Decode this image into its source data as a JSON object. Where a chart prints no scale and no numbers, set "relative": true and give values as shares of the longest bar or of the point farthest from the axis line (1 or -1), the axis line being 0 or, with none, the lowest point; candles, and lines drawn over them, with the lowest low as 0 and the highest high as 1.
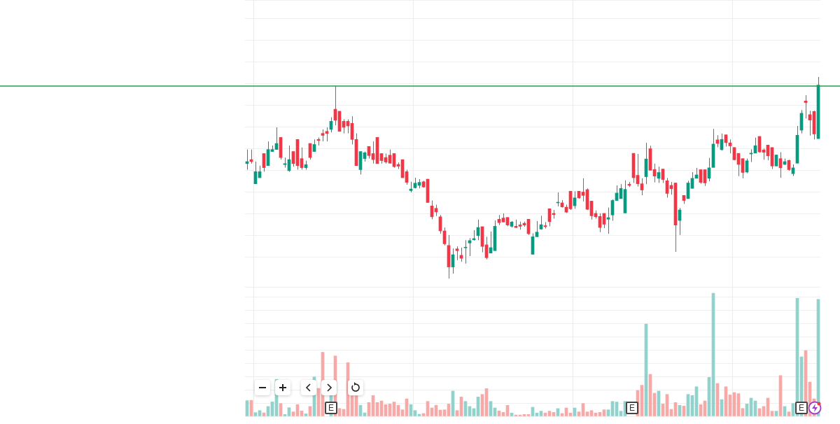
{
  "chart_data": [
    {
      "type": "candlestick",
      "relative": true,
      "grid": true,
      "categories": [
        null,
        null,
        null,
        null,
        null,
        null,
        null,
        null,
        null,
        null,
        null,
        null,
        null,
        null,
        null,
        null,
        null,
        null,
        null,
        null,
        null,
        null,
        null,
        null,
        null,
        null,
        null,
        null,
        null,
        null,
        null,
        null,
        null,
        null,
        null,
        null,
        null,
        null,
        null,
        null,
        null,
        null,
        null,
        null,
        null,
        null,
        null,
        null,
        null,
        null,
        null,
        null,
        null,
        null,
        null,
        null,
        null,
        null,
        null,
        null,
        null,
        null,
        null,
        null,
        null,
        null,
        null,
        null,
        null,
        null,
        null,
        null,
        null,
        null,
        null,
        null,
        null,
        null,
        null,
        null,
        null,
        null,
        null,
        null,
        null,
        null,
        null,
        null,
        null,
        null,
        null,
        null,
        null,
        null,
        null,
        null,
        null,
        null,
        null,
        null,
        null,
        null,
        null,
        null,
        null,
        null,
        null,
        null,
        null,
        null,
        null,
        null,
        null,
        null,
        null,
        null,
        null,
        null,
        null,
        null,
        null,
        null,
        null,
        null,
        null,
        null,
        null,
        null,
        null,
        null,
        null,
        null,
        null,
        null,
        null,
        null,
        null
      ],
      "colors": [
        "#089981",
        "#f23645",
        "#089981",
        "#089981",
        "#f23645",
        "#089981",
        "#089981",
        "#089981",
        "#f23645",
        "#089981",
        "#089981",
        "#f23645",
        "#f23645",
        "#f23645",
        "#089981",
        "#f23645",
        "#089981",
        "#f23645",
        "#f23645",
        "#f23645",
        "#089981",
        "#f23645",
        "#f23645",
        "#f23645",
        "#f23645",
        "#f23645",
        "#f23645",
        "#089981",
        "#089981",
        "#f23645",
        "#f23645",
        "#f23645",
        "#f23645",
        "#f23645",
        "#f23645",
        "#f23645",
        "#f23645",
        "#f23645",
        "#f23645",
        "#089981",
        "#089981",
        "#089981",
        "#f23645",
        "#f23645",
        "#f23645",
        "#f23645",
        "#f23645",
        "#f23645",
        "#f23645",
        "#089981",
        "#f23645",
        "#f23645",
        "#089981",
        "#089981",
        "#089981",
        "#089981",
        "#f23645",
        "#f23645",
        "#089981",
        "#089981",
        "#f23645",
        "#f23645",
        "#f23645",
        "#089981",
        "#f23645",
        "#f23645",
        "#f23645",
        "#f23645",
        "#089981",
        "#089981",
        "#089981",
        "#f23645",
        "#f23645",
        "#f23645",
        "#089981",
        "#f23645",
        "#f23645",
        "#f23645",
        "#089981",
        "#f23645",
        "#f23645",
        "#f23645",
        "#f23645",
        "#f23645",
        "#f23645",
        "#f23645",
        "#089981",
        "#089981",
        "#089981",
        "#089981",
        "#089981",
        "#f23645",
        "#f23645",
        "#f23645",
        "#f23645",
        "#089981",
        "#f23645",
        "#f23645",
        "#089981",
        "#f23645",
        "#f23645",
        "#f23645",
        "#f23645",
        "#089981",
        "#f23645",
        "#089981",
        "#089981",
        "#089981",
        "#f23645",
        "#f23645",
        "#089981",
        "#089981",
        "#f23645",
        "#089981",
        "#f23645",
        "#f23645",
        "#f23645",
        "#f23645",
        "#f23645",
        "#089981",
        "#089981",
        "#089981",
        "#f23645",
        "#f23645",
        "#f23645",
        "#f23645",
        "#089981",
        "#f23645",
        "#089981",
        "#f23645",
        "#089981",
        "#089981",
        "#089981",
        "#f23645",
        "#f23645",
        "#f23645",
        "#089981"
      ],
      "ohlc": [
        [
          0.57,
          0.64,
          0.54,
          0.58
        ],
        [
          0.59,
          0.64,
          0.57,
          0.58
        ],
        [
          0.47,
          0.58,
          0.47,
          0.53
        ],
        [
          0.5,
          0.56,
          0.5,
          0.53
        ],
        [
          0.62,
          0.62,
          0.53,
          0.55
        ],
        [
          0.56,
          0.68,
          0.56,
          0.64
        ],
        [
          0.63,
          0.66,
          0.63,
          0.64
        ],
        [
          0.64,
          0.75,
          0.64,
          0.67
        ],
        [
          0.7,
          0.7,
          0.59,
          0.6
        ],
        [
          0.565,
          0.6,
          0.55,
          0.57
        ],
        [
          0.535,
          0.66,
          0.53,
          0.59
        ],
        [
          0.63,
          0.63,
          0.555,
          0.57
        ],
        [
          0.69,
          0.69,
          0.54,
          0.56
        ],
        [
          0.595,
          0.65,
          0.54,
          0.55
        ],
        [
          0.55,
          0.585,
          0.54,
          0.565
        ],
        [
          0.67,
          0.67,
          0.59,
          0.6
        ],
        [
          0.63,
          0.69,
          0.63,
          0.665
        ],
        [
          0.69,
          0.7,
          0.66,
          0.685
        ],
        [
          0.72,
          0.74,
          0.68,
          0.71
        ],
        [
          0.73,
          0.75,
          0.68,
          0.72
        ],
        [
          0.74,
          0.8,
          0.725,
          0.78
        ],
        [
          0.84,
          0.956,
          0.76,
          0.785
        ],
        [
          0.83,
          0.83,
          0.73,
          0.73
        ],
        [
          0.78,
          0.79,
          0.72,
          0.75
        ],
        [
          0.78,
          0.79,
          0.72,
          0.757
        ],
        [
          0.77,
          0.805,
          0.665,
          0.69
        ],
        [
          0.69,
          0.72,
          0.56,
          0.56
        ],
        [
          0.54,
          0.63,
          0.516,
          0.63
        ],
        [
          0.595,
          0.63,
          0.58,
          0.624
        ],
        [
          0.655,
          0.655,
          0.595,
          0.61
        ],
        [
          0.62,
          0.68,
          0.57,
          0.59
        ],
        [
          0.7,
          0.7,
          0.57,
          0.57
        ],
        [
          0.62,
          0.62,
          0.57,
          0.585
        ],
        [
          0.6,
          0.62,
          0.57,
          0.578
        ],
        [
          0.612,
          0.64,
          0.57,
          0.572
        ],
        [
          0.62,
          0.62,
          0.55,
          0.555
        ],
        [
          0.566,
          0.576,
          0.543,
          0.557
        ],
        [
          0.59,
          0.59,
          0.5,
          0.5
        ],
        [
          0.53,
          0.54,
          0.465,
          0.477
        ],
        [
          0.436,
          0.48,
          0.427,
          0.444
        ],
        [
          0.45,
          0.5,
          0.447,
          0.473
        ],
        [
          0.462,
          0.493,
          0.447,
          0.477
        ],
        [
          0.48,
          0.485,
          0.45,
          0.454
        ],
        [
          0.493,
          0.493,
          0.377,
          0.377
        ],
        [
          0.36,
          0.387,
          0.294,
          0.306
        ],
        [
          0.348,
          0.366,
          0.31,
          0.33
        ],
        [
          0.306,
          0.315,
          0.222,
          0.236
        ],
        [
          0.236,
          0.253,
          0.164,
          0.172
        ],
        [
          0.164,
          0.216,
          0,
          0.057
        ],
        [
          0.057,
          0.149,
          0.024,
          0.118
        ],
        [
          0.147,
          0.159,
          0.091,
          0.138
        ],
        [
          0.115,
          0.153,
          0.083,
          0.1
        ],
        [
          0.152,
          0.19,
          0.074,
          0.155
        ],
        [
          0.176,
          0.2,
          0.111,
          0.188
        ],
        [
          0.192,
          0.24,
          0.188,
          0.198
        ],
        [
          0.213,
          0.292,
          0.19,
          0.253
        ],
        [
          0.257,
          0.257,
          0.13,
          0.159
        ],
        [
          0.167,
          0.207,
          0.095,
          0.103
        ],
        [
          0.126,
          0.233,
          0.126,
          0.153
        ],
        [
          0.138,
          0.288,
          0.138,
          0.259
        ],
        [
          0.294,
          0.315,
          0.265,
          0.277
        ],
        [
          0.3,
          0.323,
          0.28,
          0.28
        ],
        [
          0.303,
          0.303,
          0.259,
          0.265
        ],
        [
          0.259,
          0.285,
          0.253,
          0.28
        ],
        [
          0.259,
          0.292,
          0.25,
          0.253
        ],
        [
          0.266,
          0.282,
          0.242,
          0.259
        ],
        [
          0.274,
          0.282,
          0.257,
          0.265
        ],
        [
          0.294,
          0.294,
          0.216,
          0.222
        ],
        [
          0.12,
          0.224,
          0.12,
          0.207
        ],
        [
          0.207,
          0.285,
          0.207,
          0.23
        ],
        [
          0.245,
          0.311,
          0.242,
          0.267
        ],
        [
          0.262,
          0.28,
          0.248,
          0.257
        ],
        [
          0.346,
          0.346,
          0.259,
          0.282
        ],
        [
          0.323,
          0.34,
          0.297,
          0.317
        ],
        [
          0.375,
          0.427,
          0.358,
          0.378
        ],
        [
          0.375,
          0.389,
          0.352,
          0.355
        ],
        [
          0.354,
          0.366,
          0.325,
          0.329
        ],
        [
          0.433,
          0.433,
          0.34,
          0.346
        ],
        [
          0.361,
          0.433,
          0.346,
          0.4
        ],
        [
          0.433,
          0.433,
          0.396,
          0.4
        ],
        [
          0.429,
          0.497,
          0.383,
          0.412
        ],
        [
          0.441,
          0.447,
          0.34,
          0.343
        ],
        [
          0.384,
          0.384,
          0.292,
          0.311
        ],
        [
          0.323,
          0.338,
          0.297,
          0.306
        ],
        [
          0.308,
          0.323,
          0.23,
          0.253
        ],
        [
          0.323,
          0.323,
          0.25,
          0.269
        ],
        [
          0.294,
          0.352,
          0.222,
          0.302
        ],
        [
          0.315,
          0.392,
          0.286,
          0.387
        ],
        [
          0.387,
          0.462,
          0.387,
          0.424
        ],
        [
          0.396,
          0.468,
          0.396,
          0.447
        ],
        [
          0.325,
          0.487,
          0.325,
          0.442
        ],
        [
          0.468,
          0.479,
          0.454,
          0.462
        ],
        [
          0.621,
          0.621,
          0.474,
          0.5
        ],
        [
          0.512,
          0.618,
          0.456,
          0.47
        ],
        [
          0.47,
          0.497,
          0.413,
          0.439
        ],
        [
          0.505,
          0.673,
          0.468,
          0.593
        ],
        [
          0.644,
          0.659,
          0.537,
          0.537
        ],
        [
          0.541,
          0.57,
          0.477,
          0.508
        ],
        [
          0.497,
          0.555,
          0.474,
          0.526
        ],
        [
          0.543,
          0.543,
          0.474,
          0.491
        ],
        [
          0.485,
          0.499,
          0.401,
          0.422
        ],
        [
          0.462,
          0.479,
          0.416,
          0.445
        ],
        [
          0.474,
          0.474,
          0.132,
          0.265
        ],
        [
          0.288,
          0.35,
          0.216,
          0.34
        ],
        [
          0.412,
          0.412,
          0.37,
          0.387
        ],
        [
          0.396,
          0.485,
          0.396,
          0.474
        ],
        [
          0.447,
          0.528,
          0.447,
          0.497
        ],
        [
          0.497,
          0.549,
          0.497,
          0.514
        ],
        [
          0.54,
          0.54,
          0.47,
          0.477
        ],
        [
          0.54,
          0.54,
          0.459,
          0.474
        ],
        [
          0.497,
          0.598,
          0.482,
          0.549
        ],
        [
          0.551,
          0.742,
          0.551,
          0.667
        ],
        [
          0.688,
          0.711,
          0.651,
          0.67
        ],
        [
          0.639,
          0.719,
          0.636,
          0.69
        ],
        [
          0.713,
          0.713,
          0.655,
          0.674
        ],
        [
          0.673,
          0.69,
          0.621,
          0.658
        ],
        [
          0.65,
          0.65,
          0.586,
          0.589
        ],
        [
          0.621,
          0.621,
          0.508,
          0.566
        ],
        [
          0.595,
          0.595,
          0.497,
          0.526
        ],
        [
          0.528,
          0.595,
          0.523,
          0.584
        ],
        [
          0.618,
          0.641,
          0.578,
          0.622
        ],
        [
          0.622,
          0.699,
          0.622,
          0.659
        ],
        [
          0.705,
          0.705,
          0.624,
          0.628
        ],
        [
          0.638,
          0.645,
          0.589,
          0.626
        ],
        [
          0.662,
          0.662,
          0.587,
          0.609
        ],
        [
          0.65,
          0.65,
          0.543,
          0.558
        ],
        [
          0.558,
          0.613,
          0.558,
          0.613
        ],
        [
          0.595,
          0.627,
          0.5,
          0.549
        ],
        [
          0.566,
          0.595,
          0.563,
          0.58
        ],
        [
          0.586,
          0.589,
          0.535,
          0.54
        ],
        [
          0.52,
          0.566,
          0.508,
          0.549
        ],
        [
          0.572,
          0.757,
          0.572,
          0.711
        ],
        [
          0.736,
          0.836,
          0.72,
          0.82
        ],
        [
          0.881,
          0.91,
          0.794,
          0.873
        ],
        [
          0.813,
          0.832,
          0.709,
          0.786
        ],
        [
          0.829,
          0.832,
          0.69,
          0.717
        ],
        [
          0.694,
          1,
          0.694,
          0.96
        ]
      ],
      "ref_lines": [
        {
          "axis": "y",
          "value": 0.955,
          "color": "#22a04b"
        }
      ]
    },
    {
      "type": "bar",
      "relative": true,
      "grid": true,
      "categories": [
        null,
        null,
        null,
        null,
        null,
        null,
        null,
        null,
        null,
        null,
        null,
        null,
        null,
        null,
        null,
        null,
        null,
        null,
        null,
        null,
        null,
        null,
        null,
        null,
        null,
        null,
        null,
        null,
        null,
        null,
        null,
        null,
        null,
        null,
        null,
        null,
        null,
        null,
        null,
        null,
        null,
        null,
        null,
        null,
        null,
        null,
        null,
        null,
        null,
        null,
        null,
        null,
        null,
        null,
        null,
        null,
        null,
        null,
        null,
        null,
        null,
        null,
        null,
        null,
        null,
        null,
        null,
        null,
        null,
        null,
        null,
        null,
        null,
        null,
        null,
        null,
        null,
        null,
        null,
        null,
        null,
        null,
        null,
        null,
        null,
        null,
        null,
        null,
        null,
        null,
        null,
        null,
        null,
        null,
        null,
        null,
        null,
        null,
        null,
        null,
        null,
        null,
        null,
        null,
        null,
        null,
        null,
        null,
        null,
        null,
        null,
        null,
        null,
        null,
        null,
        null,
        null,
        null,
        null,
        null,
        null,
        null,
        null,
        null,
        null,
        null,
        null,
        null,
        null,
        null,
        null,
        null,
        null,
        null,
        null,
        null,
        null
      ],
      "colors": [
        "#92d2cc",
        "#f7a9a7",
        "#92d2cc",
        "#92d2cc",
        "#f7a9a7",
        "#92d2cc",
        "#92d2cc",
        "#92d2cc",
        "#f7a9a7",
        "#92d2cc",
        "#92d2cc",
        "#f7a9a7",
        "#f7a9a7",
        "#f7a9a7",
        "#92d2cc",
        "#f7a9a7",
        "#92d2cc",
        "#f7a9a7",
        "#f7a9a7",
        "#f7a9a7",
        "#92d2cc",
        "#f7a9a7",
        "#f7a9a7",
        "#f7a9a7",
        "#f7a9a7",
        "#f7a9a7",
        "#f7a9a7",
        "#92d2cc",
        "#92d2cc",
        "#f7a9a7",
        "#f7a9a7",
        "#f7a9a7",
        "#f7a9a7",
        "#f7a9a7",
        "#f7a9a7",
        "#f7a9a7",
        "#f7a9a7",
        "#f7a9a7",
        "#f7a9a7",
        "#92d2cc",
        "#92d2cc",
        "#92d2cc",
        "#f7a9a7",
        "#f7a9a7",
        "#f7a9a7",
        "#f7a9a7",
        "#f7a9a7",
        "#f7a9a7",
        "#f7a9a7",
        "#92d2cc",
        "#f7a9a7",
        "#f7a9a7",
        "#92d2cc",
        "#92d2cc",
        "#92d2cc",
        "#92d2cc",
        "#f7a9a7",
        "#f7a9a7",
        "#92d2cc",
        "#92d2cc",
        "#f7a9a7",
        "#f7a9a7",
        "#f7a9a7",
        "#92d2cc",
        "#f7a9a7",
        "#f7a9a7",
        "#f7a9a7",
        "#f7a9a7",
        "#92d2cc",
        "#92d2cc",
        "#92d2cc",
        "#f7a9a7",
        "#f7a9a7",
        "#f7a9a7",
        "#92d2cc",
        "#f7a9a7",
        "#f7a9a7",
        "#f7a9a7",
        "#92d2cc",
        "#f7a9a7",
        "#f7a9a7",
        "#f7a9a7",
        "#f7a9a7",
        "#f7a9a7",
        "#f7a9a7",
        "#f7a9a7",
        "#92d2cc",
        "#92d2cc",
        "#92d2cc",
        "#92d2cc",
        "#92d2cc",
        "#f7a9a7",
        "#f7a9a7",
        "#f7a9a7",
        "#f7a9a7",
        "#92d2cc",
        "#f7a9a7",
        "#f7a9a7",
        "#92d2cc",
        "#f7a9a7",
        "#f7a9a7",
        "#f7a9a7",
        "#f7a9a7",
        "#92d2cc",
        "#f7a9a7",
        "#92d2cc",
        "#92d2cc",
        "#92d2cc",
        "#f7a9a7",
        "#f7a9a7",
        "#92d2cc",
        "#92d2cc",
        "#f7a9a7",
        "#92d2cc",
        "#f7a9a7",
        "#f7a9a7",
        "#f7a9a7",
        "#f7a9a7",
        "#f7a9a7",
        "#92d2cc",
        "#92d2cc",
        "#92d2cc",
        "#f7a9a7",
        "#f7a9a7",
        "#f7a9a7",
        "#f7a9a7",
        "#92d2cc",
        "#f7a9a7",
        "#92d2cc",
        "#f7a9a7",
        "#92d2cc",
        "#92d2cc",
        "#92d2cc",
        "#f7a9a7",
        "#f7a9a7",
        "#f7a9a7",
        "#92d2cc"
      ],
      "values": [
        0.127,
        0.13,
        0.03,
        0.047,
        0.028,
        0.08,
        0.117,
        0.3,
        0.104,
        0.015,
        0.07,
        0.036,
        0.095,
        0.044,
        0.02,
        0.08,
        0.32,
        0.227,
        0.52,
        null,
        0.17,
        0.49,
        0.064,
        0.057,
        0.436,
        0.167,
        0.167,
        0.09,
        0.028,
        0.112,
        0.169,
        0.112,
        0.125,
        0.095,
        0.1,
        0.116,
        0.09,
        0.053,
        0.142,
        0.095,
        0.047,
        0.017,
        0.023,
        0.121,
        0.068,
        0.09,
        0.051,
        0.053,
        0.1,
        0.205,
        0.047,
        0.157,
        0.121,
        0.08,
        0.063,
        0.157,
        0.178,
        0.225,
        0.121,
        0.068,
        0.044,
        0.032,
        0.089,
        0.027,
        0.011,
        0.011,
        0.015,
        0.015,
        0.074,
        0.027,
        0.042,
        0.027,
        0.042,
        0.032,
        0.063,
        0.023,
        0.068,
        0.027,
        0.068,
        0.036,
        0.104,
        0.036,
        0.047,
        0.027,
        0.032,
        0.053,
        0.053,
        0.121,
        0.116,
        0.042,
        0.121,
        null,
        null,
        0.21,
        0.252,
        0.75,
        0.341,
        0.1875,
        0.205,
        0.1,
        0.178,
        0.057,
        0.112,
        0.089,
        0.083,
        0.178,
        0.169,
        0.24,
        0.095,
        0.125,
        0.316,
        1,
        0.267,
        0.136,
        0.24,
        0.174,
        0.193,
        0.184,
        0.064,
        0.1,
        0.148,
        0.125,
        0.063,
        0.08,
        0.148,
        0.042,
        0.042,
        0.331,
        0.08,
        0.036,
        0.104,
        0.958,
        0.483,
        0.534,
        0.278,
        0.142,
        0.949
      ],
      "annotations": [
        "E",
        "E",
        "E"
      ]
    }
  ]
}
